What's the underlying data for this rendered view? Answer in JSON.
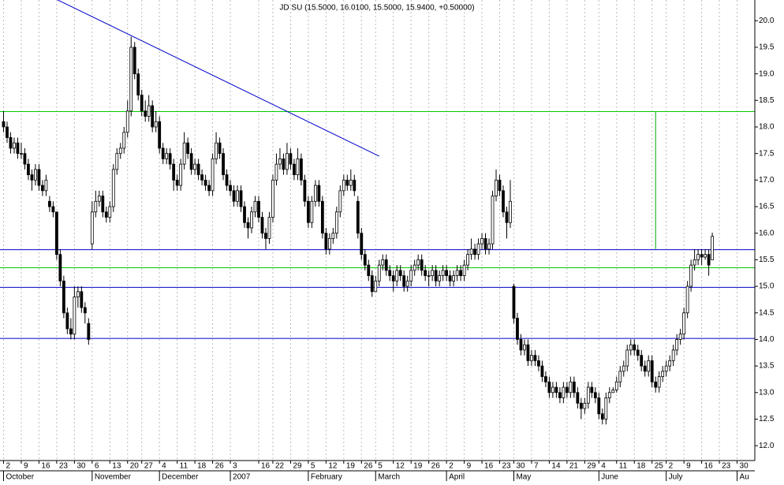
{
  "chart_data": {
    "type": "candlestick",
    "title": "JD SU (15.5000, 16.0100, 15.5000, 15.9400, +0.50000)",
    "ylim": [
      11.72,
      20.39
    ],
    "yticks": [
      {
        "value": 12,
        "label": "12.0"
      },
      {
        "value": 12.5,
        "label": "12.5"
      },
      {
        "value": 13,
        "label": "13.0"
      },
      {
        "value": 13.5,
        "label": "13.5"
      },
      {
        "value": 14,
        "label": "14.0"
      },
      {
        "value": 14.5,
        "label": "14.5"
      },
      {
        "value": 15,
        "label": "15.0"
      },
      {
        "value": 15.5,
        "label": "15.5"
      },
      {
        "value": 16,
        "label": "16.0"
      },
      {
        "value": 16.5,
        "label": "16.5"
      },
      {
        "value": 17,
        "label": "17.0"
      },
      {
        "value": 17.5,
        "label": "17.5"
      },
      {
        "value": 18,
        "label": "18.0"
      },
      {
        "value": 18.5,
        "label": "18.5"
      },
      {
        "value": 19,
        "label": "19.0"
      },
      {
        "value": 19.5,
        "label": "19.5"
      },
      {
        "value": 20,
        "label": "20.0"
      }
    ],
    "xlim": [
      -1,
      212
    ],
    "xticks": [
      {
        "value": 0,
        "label": "2"
      },
      {
        "value": 5,
        "label": "9"
      },
      {
        "value": 10,
        "label": "16"
      },
      {
        "value": 15,
        "label": "23"
      },
      {
        "value": 20,
        "label": "30"
      },
      {
        "value": 25,
        "label": "6"
      },
      {
        "value": 30,
        "label": "13"
      },
      {
        "value": 35,
        "label": "20"
      },
      {
        "value": 39,
        "label": "27"
      },
      {
        "value": 44,
        "label": "4"
      },
      {
        "value": 49,
        "label": "11"
      },
      {
        "value": 54,
        "label": "18"
      },
      {
        "value": 59,
        "label": "26"
      },
      {
        "value": 64,
        "label": "3"
      },
      {
        "value": 72,
        "label": "16"
      },
      {
        "value": 76,
        "label": "22"
      },
      {
        "value": 81,
        "label": "29"
      },
      {
        "value": 86,
        "label": "5"
      },
      {
        "value": 91,
        "label": "12"
      },
      {
        "value": 96,
        "label": "19"
      },
      {
        "value": 101,
        "label": "26"
      },
      {
        "value": 105,
        "label": "5"
      },
      {
        "value": 110,
        "label": "12"
      },
      {
        "value": 115,
        "label": "19"
      },
      {
        "value": 120,
        "label": "26"
      },
      {
        "value": 125,
        "label": "2"
      },
      {
        "value": 130,
        "label": "9"
      },
      {
        "value": 135,
        "label": "16"
      },
      {
        "value": 140,
        "label": "23"
      },
      {
        "value": 144,
        "label": "30"
      },
      {
        "value": 149,
        "label": "7"
      },
      {
        "value": 154,
        "label": "14"
      },
      {
        "value": 159,
        "label": "21"
      },
      {
        "value": 164,
        "label": "29"
      },
      {
        "value": 168,
        "label": "4"
      },
      {
        "value": 173,
        "label": "11"
      },
      {
        "value": 178,
        "label": "18"
      },
      {
        "value": 183,
        "label": "25"
      },
      {
        "value": 187,
        "label": "2"
      },
      {
        "value": 192,
        "label": "9"
      },
      {
        "value": 197,
        "label": "16"
      },
      {
        "value": 202,
        "label": "23"
      },
      {
        "value": 207,
        "label": "30"
      }
    ],
    "months": [
      {
        "value": 0,
        "label": "October"
      },
      {
        "value": 25,
        "label": "November"
      },
      {
        "value": 44,
        "label": "December"
      },
      {
        "value": 64,
        "label": "2007"
      },
      {
        "value": 86,
        "label": "February"
      },
      {
        "value": 105,
        "label": "March"
      },
      {
        "value": 125,
        "label": "April"
      },
      {
        "value": 144,
        "label": "May"
      },
      {
        "value": 168,
        "label": "June"
      },
      {
        "value": 187,
        "label": "July"
      },
      {
        "value": 207,
        "label": "Au"
      }
    ],
    "grid": "vertical",
    "up_color": "#ffffff",
    "down_color": "#000000",
    "hlines": [
      {
        "value": 18.29,
        "color": "#00cc00"
      },
      {
        "value": 15.69,
        "color": "#0000cc"
      },
      {
        "value": 15.35,
        "color": "#00cc00"
      },
      {
        "value": 14.98,
        "color": "#0000cc"
      },
      {
        "value": 14.02,
        "color": "#0000cc"
      }
    ],
    "trendline": {
      "x": [
        15,
        106
      ],
      "y": [
        20.4,
        17.45
      ],
      "color": "#0000cc"
    },
    "vline": {
      "x": 184,
      "y": [
        18.29,
        15.7
      ],
      "color": "#00aa00"
    },
    "ohlc": [
      [
        18.1,
        18.3,
        17.9,
        18.0
      ],
      [
        18.0,
        18.1,
        17.7,
        17.8
      ],
      [
        17.8,
        17.9,
        17.5,
        17.6
      ],
      [
        17.6,
        17.8,
        17.5,
        17.7
      ],
      [
        17.7,
        17.8,
        17.4,
        17.5
      ],
      [
        17.5,
        17.7,
        17.4,
        17.5
      ],
      [
        17.5,
        17.6,
        17.2,
        17.3
      ],
      [
        17.3,
        17.4,
        17.0,
        17.1
      ],
      [
        17.1,
        17.2,
        16.8,
        17.0
      ],
      [
        17.0,
        17.3,
        16.9,
        17.2
      ],
      [
        17.2,
        17.3,
        16.8,
        16.9
      ],
      [
        16.9,
        17.0,
        16.7,
        16.8
      ],
      [
        16.8,
        17.1,
        16.7,
        17.0
      ],
      [
        16.6,
        16.7,
        16.4,
        16.5
      ],
      [
        16.5,
        16.6,
        16.3,
        16.4
      ],
      [
        16.4,
        16.4,
        15.5,
        15.6
      ],
      [
        15.6,
        15.7,
        15.0,
        15.1
      ],
      [
        15.1,
        15.2,
        14.4,
        14.5
      ],
      [
        14.5,
        14.6,
        14.1,
        14.2
      ],
      [
        14.2,
        14.4,
        14.0,
        14.1
      ],
      [
        14.1,
        15.0,
        14.0,
        14.8
      ],
      [
        14.8,
        15.0,
        14.6,
        14.9
      ],
      [
        14.9,
        15.0,
        14.5,
        14.6
      ],
      [
        14.6,
        14.7,
        14.3,
        14.5
      ],
      [
        14.3,
        14.4,
        13.9,
        14.0
      ],
      [
        15.8,
        16.6,
        15.7,
        16.4
      ],
      [
        16.4,
        16.8,
        16.3,
        16.6
      ],
      [
        16.6,
        16.8,
        16.5,
        16.7
      ],
      [
        16.7,
        16.8,
        16.3,
        16.4
      ],
      [
        16.4,
        16.5,
        16.2,
        16.3
      ],
      [
        16.3,
        16.6,
        16.2,
        16.5
      ],
      [
        16.5,
        17.3,
        16.4,
        17.2
      ],
      [
        17.2,
        17.6,
        17.1,
        17.5
      ],
      [
        17.5,
        17.7,
        17.4,
        17.6
      ],
      [
        17.6,
        18.0,
        17.5,
        17.9
      ],
      [
        17.9,
        18.5,
        17.8,
        18.3
      ],
      [
        18.3,
        19.7,
        18.2,
        19.5
      ],
      [
        19.5,
        19.6,
        18.9,
        19.0
      ],
      [
        19.0,
        19.1,
        18.5,
        18.6
      ],
      [
        18.6,
        18.7,
        18.2,
        18.3
      ],
      [
        18.3,
        18.5,
        18.1,
        18.2
      ],
      [
        18.2,
        18.6,
        18.1,
        18.4
      ],
      [
        18.4,
        18.5,
        17.9,
        18.0
      ],
      [
        18.0,
        18.3,
        17.9,
        18.1
      ],
      [
        18.1,
        18.2,
        17.5,
        17.6
      ],
      [
        17.6,
        17.7,
        17.3,
        17.4
      ],
      [
        17.4,
        17.6,
        17.3,
        17.5
      ],
      [
        17.5,
        17.6,
        17.2,
        17.3
      ],
      [
        17.3,
        17.4,
        16.8,
        17.0
      ],
      [
        17.0,
        17.1,
        16.8,
        16.9
      ],
      [
        16.9,
        17.4,
        16.8,
        17.3
      ],
      [
        17.3,
        17.9,
        17.2,
        17.7
      ],
      [
        17.7,
        17.8,
        17.4,
        17.5
      ],
      [
        17.5,
        17.6,
        17.1,
        17.2
      ],
      [
        17.2,
        17.4,
        17.1,
        17.3
      ],
      [
        17.3,
        17.4,
        17.0,
        17.1
      ],
      [
        17.1,
        17.2,
        16.9,
        17.0
      ],
      [
        17.0,
        17.1,
        16.8,
        16.9
      ],
      [
        16.9,
        17.0,
        16.7,
        16.8
      ],
      [
        16.8,
        17.5,
        16.7,
        17.4
      ],
      [
        17.4,
        17.9,
        17.3,
        17.7
      ],
      [
        17.7,
        17.8,
        17.4,
        17.5
      ],
      [
        17.5,
        17.6,
        17.0,
        17.1
      ],
      [
        17.1,
        17.2,
        16.8,
        16.9
      ],
      [
        16.9,
        17.0,
        16.7,
        16.8
      ],
      [
        16.8,
        16.9,
        16.5,
        16.6
      ],
      [
        16.6,
        16.9,
        16.5,
        16.8
      ],
      [
        16.8,
        16.9,
        16.4,
        16.5
      ],
      [
        16.5,
        16.6,
        16.1,
        16.2
      ],
      [
        16.2,
        16.3,
        15.9,
        16.1
      ],
      [
        16.1,
        16.5,
        16.0,
        16.4
      ],
      [
        16.4,
        16.7,
        16.3,
        16.6
      ],
      [
        16.6,
        16.7,
        16.2,
        16.3
      ],
      [
        16.3,
        16.4,
        15.9,
        16.0
      ],
      [
        16.0,
        16.1,
        15.7,
        15.9
      ],
      [
        15.9,
        16.4,
        15.8,
        16.3
      ],
      [
        16.3,
        17.1,
        16.2,
        17.0
      ],
      [
        17.0,
        17.5,
        16.9,
        17.3
      ],
      [
        17.3,
        17.6,
        17.2,
        17.4
      ],
      [
        17.4,
        17.5,
        17.1,
        17.2
      ],
      [
        17.2,
        17.7,
        17.1,
        17.5
      ],
      [
        17.5,
        17.6,
        17.2,
        17.3
      ],
      [
        17.3,
        17.4,
        17.0,
        17.1
      ],
      [
        17.1,
        17.6,
        17.0,
        17.4
      ],
      [
        17.4,
        17.5,
        16.9,
        17.0
      ],
      [
        17.0,
        17.1,
        16.5,
        16.6
      ],
      [
        16.6,
        16.7,
        16.1,
        16.2
      ],
      [
        16.2,
        16.7,
        16.1,
        16.6
      ],
      [
        16.6,
        17.0,
        16.5,
        16.9
      ],
      [
        16.9,
        17.0,
        16.5,
        16.6
      ],
      [
        16.6,
        16.7,
        15.9,
        16.0
      ],
      [
        16.0,
        16.1,
        15.6,
        15.7
      ],
      [
        15.7,
        16.0,
        15.6,
        15.9
      ],
      [
        15.9,
        16.1,
        15.8,
        16.0
      ],
      [
        16.0,
        16.5,
        15.9,
        16.4
      ],
      [
        16.4,
        16.9,
        16.3,
        16.8
      ],
      [
        16.8,
        17.1,
        16.7,
        17.0
      ],
      [
        17.0,
        17.1,
        16.8,
        16.9
      ],
      [
        16.9,
        17.2,
        16.8,
        17.0
      ],
      [
        17.0,
        17.1,
        16.7,
        16.8
      ],
      [
        16.6,
        16.7,
        15.9,
        16.0
      ],
      [
        16.0,
        16.1,
        15.5,
        15.6
      ],
      [
        15.6,
        15.7,
        15.3,
        15.4
      ],
      [
        15.4,
        15.5,
        15.1,
        15.2
      ],
      [
        15.2,
        15.3,
        14.8,
        14.9
      ],
      [
        14.9,
        15.2,
        14.9,
        15.1
      ],
      [
        15.1,
        15.5,
        15.0,
        15.4
      ],
      [
        15.4,
        15.6,
        15.3,
        15.5
      ],
      [
        15.5,
        15.6,
        15.2,
        15.3
      ],
      [
        15.3,
        15.4,
        15.1,
        15.2
      ],
      [
        15.2,
        15.3,
        14.9,
        15.1
      ],
      [
        15.1,
        15.4,
        15.0,
        15.3
      ],
      [
        15.3,
        15.4,
        15.1,
        15.2
      ],
      [
        15.2,
        15.3,
        14.9,
        15.0
      ],
      [
        15.0,
        15.2,
        14.9,
        15.1
      ],
      [
        15.1,
        15.4,
        15.0,
        15.3
      ],
      [
        15.3,
        15.5,
        15.2,
        15.4
      ],
      [
        15.4,
        15.6,
        15.3,
        15.5
      ],
      [
        15.5,
        15.6,
        15.2,
        15.3
      ],
      [
        15.3,
        15.4,
        15.1,
        15.2
      ],
      [
        15.2,
        15.3,
        15.0,
        15.2
      ],
      [
        15.2,
        15.4,
        15.1,
        15.3
      ],
      [
        15.3,
        15.4,
        15.0,
        15.1
      ],
      [
        15.1,
        15.3,
        15.0,
        15.2
      ],
      [
        15.2,
        15.4,
        15.1,
        15.3
      ],
      [
        15.3,
        15.4,
        15.1,
        15.2
      ],
      [
        15.2,
        15.3,
        15.0,
        15.1
      ],
      [
        15.1,
        15.3,
        15.0,
        15.2
      ],
      [
        15.2,
        15.4,
        15.1,
        15.3
      ],
      [
        15.3,
        15.4,
        15.1,
        15.2
      ],
      [
        15.2,
        15.5,
        15.1,
        15.4
      ],
      [
        15.4,
        15.7,
        15.3,
        15.6
      ],
      [
        15.6,
        15.9,
        15.5,
        15.7
      ],
      [
        15.7,
        15.8,
        15.5,
        15.6
      ],
      [
        15.6,
        15.9,
        15.5,
        15.8
      ],
      [
        15.8,
        16.0,
        15.7,
        15.9
      ],
      [
        15.9,
        16.0,
        15.6,
        15.7
      ],
      [
        15.7,
        15.9,
        15.6,
        15.8
      ],
      [
        15.8,
        16.8,
        15.7,
        16.7
      ],
      [
        16.7,
        17.2,
        16.6,
        17.0
      ],
      [
        17.0,
        17.1,
        16.7,
        16.8
      ],
      [
        16.8,
        16.9,
        16.3,
        16.4
      ],
      [
        16.4,
        16.5,
        15.9,
        16.2
      ],
      [
        16.2,
        17.0,
        16.1,
        16.6
      ],
      [
        15.0,
        15.05,
        14.3,
        14.4
      ],
      [
        14.4,
        14.5,
        13.9,
        14.0
      ],
      [
        14.0,
        14.1,
        13.7,
        13.8
      ],
      [
        13.8,
        14.0,
        13.7,
        13.9
      ],
      [
        13.9,
        14.0,
        13.5,
        13.6
      ],
      [
        13.6,
        13.8,
        13.5,
        13.7
      ],
      [
        13.7,
        13.8,
        13.5,
        13.6
      ],
      [
        13.6,
        13.7,
        13.4,
        13.5
      ],
      [
        13.5,
        13.6,
        13.2,
        13.3
      ],
      [
        13.3,
        13.4,
        13.1,
        13.2
      ],
      [
        13.2,
        13.3,
        12.9,
        13.0
      ],
      [
        13.0,
        13.2,
        12.9,
        13.1
      ],
      [
        13.1,
        13.2,
        12.9,
        13.0
      ],
      [
        13.0,
        13.1,
        12.8,
        12.9
      ],
      [
        12.9,
        13.2,
        12.8,
        13.1
      ],
      [
        13.1,
        13.2,
        12.9,
        13.0
      ],
      [
        13.0,
        13.3,
        12.9,
        13.2
      ],
      [
        13.2,
        13.3,
        12.9,
        13.0
      ],
      [
        13.0,
        13.1,
        12.7,
        12.8
      ],
      [
        12.8,
        12.9,
        12.5,
        12.7
      ],
      [
        12.7,
        12.9,
        12.6,
        12.8
      ],
      [
        12.8,
        13.2,
        12.7,
        13.1
      ],
      [
        13.1,
        13.2,
        12.9,
        13.0
      ],
      [
        13.0,
        13.1,
        12.8,
        12.9
      ],
      [
        12.9,
        13.0,
        12.5,
        12.6
      ],
      [
        12.6,
        12.7,
        12.4,
        12.5
      ],
      [
        12.5,
        13.0,
        12.4,
        12.9
      ],
      [
        12.9,
        13.1,
        12.8,
        13.0
      ],
      [
        13.0,
        13.1,
        13.0,
        13.05
      ],
      [
        13.05,
        13.3,
        13.0,
        13.2
      ],
      [
        13.2,
        13.5,
        13.1,
        13.4
      ],
      [
        13.4,
        13.6,
        13.3,
        13.5
      ],
      [
        13.5,
        13.9,
        13.4,
        13.8
      ],
      [
        13.8,
        14.0,
        13.7,
        13.9
      ],
      [
        13.9,
        14.0,
        13.7,
        13.8
      ],
      [
        13.8,
        13.9,
        13.6,
        13.7
      ],
      [
        13.7,
        13.8,
        13.4,
        13.5
      ],
      [
        13.5,
        13.6,
        13.3,
        13.4
      ],
      [
        13.4,
        13.7,
        13.3,
        13.6
      ],
      [
        13.6,
        13.7,
        13.1,
        13.2
      ],
      [
        13.2,
        13.3,
        13.0,
        13.1
      ],
      [
        13.1,
        13.4,
        13.0,
        13.3
      ],
      [
        13.3,
        13.5,
        13.2,
        13.4
      ],
      [
        13.4,
        13.6,
        13.3,
        13.5
      ],
      [
        13.5,
        13.7,
        13.4,
        13.6
      ],
      [
        13.6,
        13.9,
        13.5,
        13.8
      ],
      [
        13.8,
        14.1,
        13.7,
        14.0
      ],
      [
        14.0,
        14.2,
        13.9,
        14.1
      ],
      [
        14.1,
        14.6,
        14.0,
        14.5
      ],
      [
        14.5,
        15.1,
        14.4,
        15.0
      ],
      [
        15.0,
        15.5,
        14.9,
        15.4
      ],
      [
        15.4,
        15.7,
        15.3,
        15.5
      ],
      [
        15.5,
        15.7,
        15.4,
        15.6
      ],
      [
        15.6,
        15.7,
        15.4,
        15.55
      ],
      [
        15.55,
        15.7,
        15.5,
        15.6
      ],
      [
        15.6,
        15.7,
        15.2,
        15.4
      ],
      [
        15.5,
        16.01,
        15.5,
        15.94
      ]
    ]
  }
}
